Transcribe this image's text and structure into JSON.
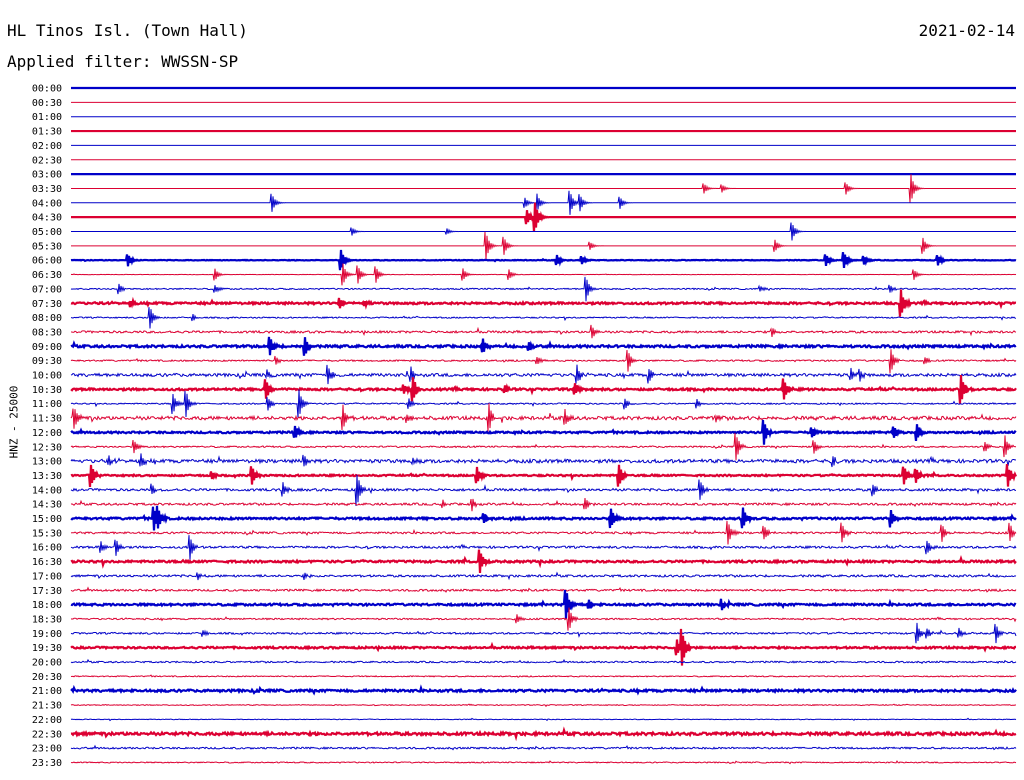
{
  "header": {
    "station": "HL Tinos Isl. (Town Hall)",
    "filter": "Applied filter: WWSSN-SP",
    "date": "2021-02-14"
  },
  "chart_data": {
    "type": "line",
    "title": "HL Tinos Isl. (Town Hall)",
    "subtitle": "Applied filter: WWSSN-SP",
    "date": "2021-02-14",
    "ylabel": "HNZ - 25000",
    "xlabel": "",
    "rows": [
      "00:00",
      "00:30",
      "01:00",
      "01:30",
      "02:00",
      "02:30",
      "03:00",
      "03:30",
      "04:00",
      "04:30",
      "05:00",
      "05:30",
      "06:00",
      "06:30",
      "07:00",
      "07:30",
      "08:00",
      "08:30",
      "09:00",
      "09:30",
      "10:00",
      "10:30",
      "11:00",
      "11:30",
      "12:00",
      "12:30",
      "13:00",
      "13:30",
      "14:00",
      "14:30",
      "15:00",
      "15:30",
      "16:00",
      "16:30",
      "17:00",
      "17:30",
      "18:00",
      "18:30",
      "19:00",
      "19:30",
      "20:00",
      "20:30",
      "21:00",
      "21:30",
      "22:00",
      "22:30",
      "23:00",
      "23:30"
    ],
    "row_minutes": 30,
    "trace_colors": [
      "#0000c8",
      "#dc0032"
    ],
    "thick_every_rows": 3,
    "noise_level": [
      0,
      0,
      0,
      0,
      0,
      0,
      0,
      0,
      0,
      0,
      0,
      0,
      0.3,
      0.2,
      0.6,
      0.9,
      0.6,
      1.0,
      1.0,
      0.7,
      1.4,
      0.9,
      0.6,
      1.6,
      0.8,
      0.7,
      1.6,
      0.7,
      1.1,
      1.0,
      0.9,
      0.9,
      1.0,
      0.9,
      1.0,
      0.9,
      0.9,
      0.7,
      0.8,
      0.8,
      0.7,
      0.5,
      1.0,
      0.4,
      0.3,
      1.2,
      0.8,
      0.5
    ],
    "events": [
      [
        7,
        [
          [
            911,
            14
          ],
          [
            846,
            6
          ],
          [
            704,
            5
          ],
          [
            722,
            4
          ]
        ]
      ],
      [
        8,
        [
          [
            272,
            9
          ],
          [
            570,
            12
          ],
          [
            580,
            8
          ],
          [
            620,
            6
          ],
          [
            537,
            9
          ],
          [
            525,
            5
          ]
        ]
      ],
      [
        9,
        [
          [
            535,
            14
          ],
          [
            527,
            7
          ]
        ]
      ],
      [
        10,
        [
          [
            792,
            9
          ],
          [
            352,
            4
          ],
          [
            447,
            3
          ]
        ]
      ],
      [
        11,
        [
          [
            486,
            14
          ],
          [
            504,
            9
          ],
          [
            923,
            8
          ],
          [
            775,
            6
          ],
          [
            590,
            4
          ]
        ]
      ],
      [
        12,
        [
          [
            128,
            6
          ],
          [
            341,
            10
          ],
          [
            844,
            8
          ],
          [
            826,
            6
          ],
          [
            938,
            5
          ],
          [
            557,
            5
          ],
          [
            582,
            4
          ],
          [
            864,
            4
          ]
        ]
      ],
      [
        13,
        [
          [
            343,
            11
          ],
          [
            358,
            9
          ],
          [
            376,
            8
          ],
          [
            215,
            6
          ],
          [
            463,
            6
          ],
          [
            509,
            5
          ],
          [
            914,
            5
          ]
        ]
      ],
      [
        14,
        [
          [
            586,
            12
          ],
          [
            119,
            5
          ],
          [
            215,
            4
          ],
          [
            760,
            3
          ],
          [
            890,
            4
          ]
        ]
      ],
      [
        15,
        [
          [
            901,
            13
          ],
          [
            131,
            3
          ],
          [
            340,
            5
          ],
          [
            365,
            3
          ]
        ]
      ],
      [
        16,
        [
          [
            150,
            11
          ],
          [
            193,
            3
          ]
        ]
      ],
      [
        17,
        [
          [
            592,
            7
          ],
          [
            772,
            4
          ]
        ]
      ],
      [
        18,
        [
          [
            270,
            9
          ],
          [
            305,
            9
          ],
          [
            483,
            7
          ],
          [
            529,
            4
          ]
        ]
      ],
      [
        19,
        [
          [
            628,
            11
          ],
          [
            891,
            12
          ],
          [
            537,
            4
          ],
          [
            276,
            4
          ],
          [
            925,
            4
          ]
        ]
      ],
      [
        20,
        [
          [
            328,
            9
          ],
          [
            577,
            10
          ],
          [
            411,
            8
          ],
          [
            649,
            7
          ],
          [
            851,
            6
          ],
          [
            860,
            5
          ],
          [
            267,
            4
          ]
        ]
      ],
      [
        21,
        [
          [
            413,
            12
          ],
          [
            266,
            10
          ],
          [
            961,
            14
          ],
          [
            784,
            10
          ],
          [
            575,
            6
          ],
          [
            404,
            5
          ],
          [
            505,
            4
          ]
        ]
      ],
      [
        22,
        [
          [
            173,
            10
          ],
          [
            186,
            13
          ],
          [
            299,
            14
          ],
          [
            268,
            7
          ],
          [
            409,
            5
          ],
          [
            625,
            5
          ],
          [
            697,
            4
          ]
        ]
      ],
      [
        23,
        [
          [
            74,
            11
          ],
          [
            343,
            12
          ],
          [
            489,
            13
          ],
          [
            565,
            8
          ],
          [
            407,
            5
          ],
          [
            716,
            3
          ]
        ]
      ],
      [
        24,
        [
          [
            764,
            12
          ],
          [
            295,
            6
          ],
          [
            917,
            8
          ],
          [
            894,
            5
          ],
          [
            812,
            5
          ]
        ]
      ],
      [
        25,
        [
          [
            736,
            14
          ],
          [
            1005,
            11
          ],
          [
            814,
            7
          ],
          [
            134,
            6
          ],
          [
            985,
            5
          ]
        ]
      ],
      [
        26,
        [
          [
            141,
            7
          ],
          [
            304,
            6
          ],
          [
            413,
            4
          ],
          [
            109,
            4
          ],
          [
            833,
            5
          ]
        ]
      ],
      [
        27,
        [
          [
            91,
            11
          ],
          [
            252,
            9
          ],
          [
            477,
            8
          ],
          [
            619,
            11
          ],
          [
            904,
            9
          ],
          [
            916,
            7
          ],
          [
            1008,
            11
          ],
          [
            212,
            4
          ]
        ]
      ],
      [
        28,
        [
          [
            357,
            16
          ],
          [
            700,
            10
          ],
          [
            283,
            7
          ],
          [
            152,
            5
          ],
          [
            873,
            6
          ]
        ]
      ],
      [
        29,
        [
          [
            472,
            6
          ],
          [
            585,
            6
          ],
          [
            443,
            4
          ]
        ]
      ],
      [
        30,
        [
          [
            154,
            11
          ],
          [
            611,
            9
          ],
          [
            743,
            10
          ],
          [
            891,
            8
          ],
          [
            484,
            5
          ],
          [
            158,
            8
          ]
        ]
      ],
      [
        31,
        [
          [
            728,
            12
          ],
          [
            764,
            7
          ],
          [
            842,
            10
          ],
          [
            942,
            9
          ],
          [
            1010,
            9
          ]
        ]
      ],
      [
        32,
        [
          [
            190,
            12
          ],
          [
            116,
            8
          ],
          [
            927,
            7
          ],
          [
            101,
            5
          ]
        ]
      ],
      [
        33,
        [
          [
            480,
            11
          ]
        ]
      ],
      [
        34,
        [
          [
            198,
            4
          ],
          [
            305,
            3
          ]
        ]
      ],
      [
        36,
        [
          [
            566,
            15
          ],
          [
            722,
            5
          ],
          [
            589,
            4
          ]
        ]
      ],
      [
        37,
        [
          [
            569,
            12
          ],
          [
            517,
            4
          ]
        ]
      ],
      [
        38,
        [
          [
            917,
            10
          ],
          [
            996,
            9
          ],
          [
            927,
            5
          ],
          [
            959,
            5
          ],
          [
            203,
            3
          ]
        ]
      ],
      [
        39,
        [
          [
            682,
            16
          ],
          [
            677,
            8
          ]
        ]
      ]
    ]
  }
}
